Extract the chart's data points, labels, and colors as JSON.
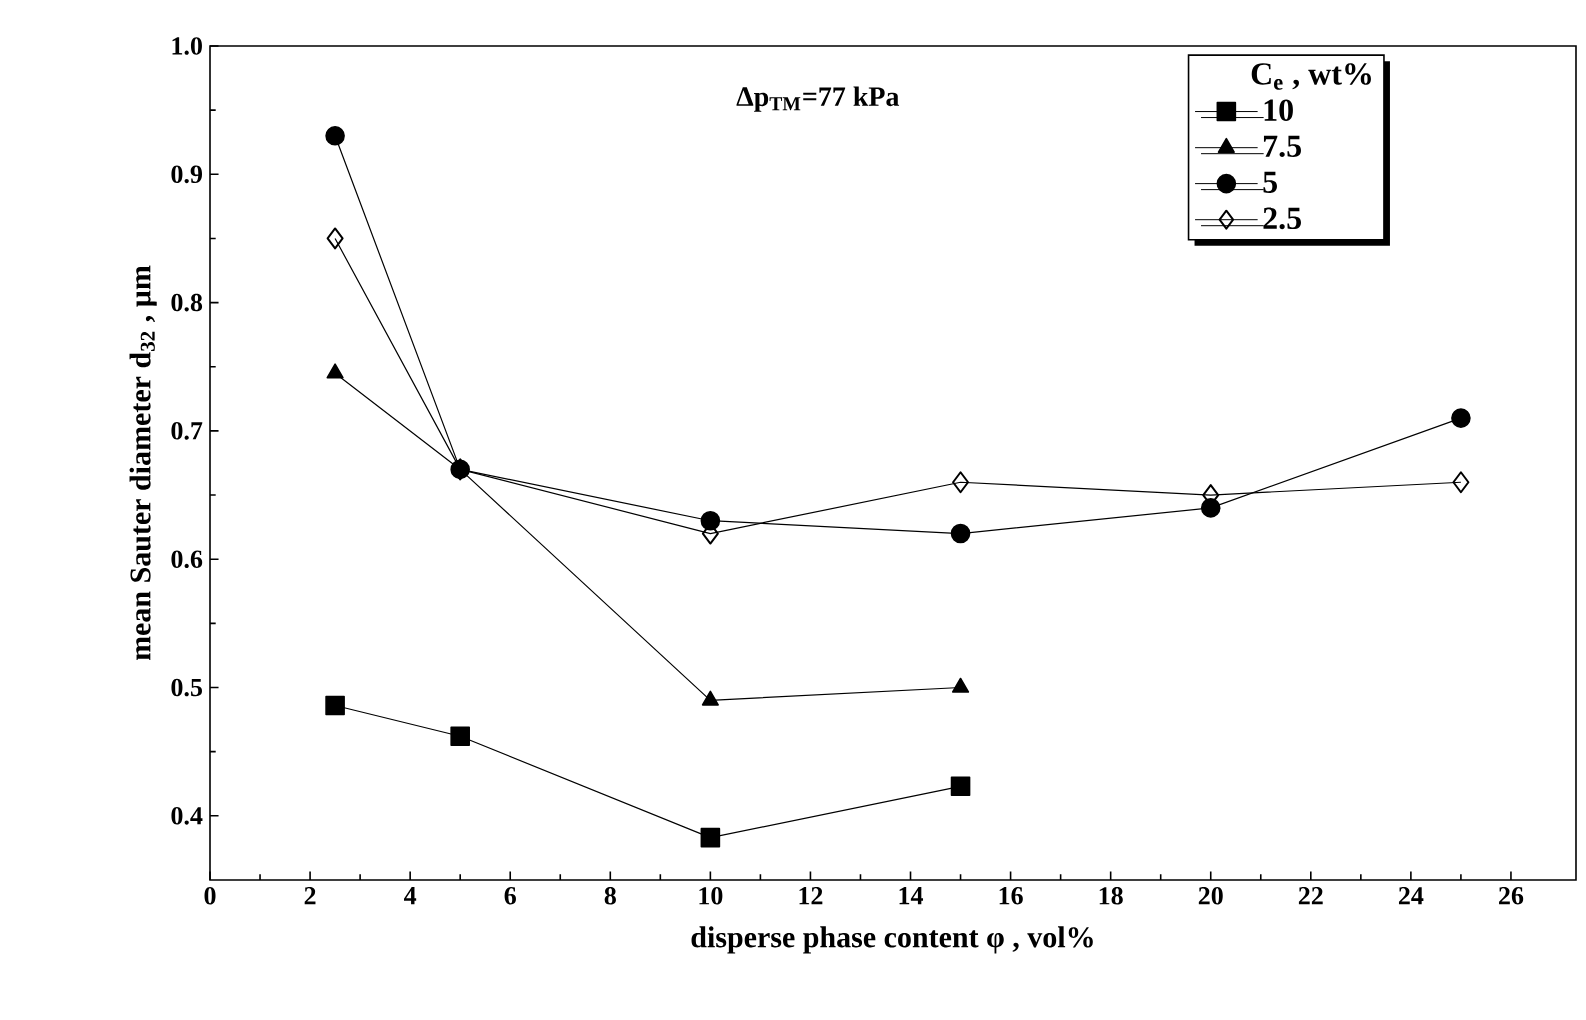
{
  "chart_data": {
    "type": "line",
    "xlabel": "disperse phase content φ , vol%",
    "ylabel": "mean Sauter diameter d$_{32}$ , µm",
    "legend_title": "C$_{e}$ , wt%",
    "annotations": [
      "Δp$_{TM}$=77 kPa"
    ],
    "xlim": [
      0,
      27.3
    ],
    "xticks": [
      0,
      2,
      4,
      6,
      8,
      10,
      12,
      14,
      16,
      18,
      20,
      22,
      24,
      26
    ],
    "ylim": [
      0.35,
      1.0
    ],
    "yticks": [
      {
        "value": 0.4,
        "label": "0.4"
      },
      {
        "value": 0.5,
        "label": "0.5"
      },
      {
        "value": 0.6,
        "label": "0.6"
      },
      {
        "value": 0.7,
        "label": "0.7"
      },
      {
        "value": 0.8,
        "label": "0.8"
      },
      {
        "value": 0.9,
        "label": "0.9"
      },
      {
        "value": 1.0,
        "label": "1.0"
      }
    ],
    "grid": false,
    "legend": "top right",
    "line_style": "solid",
    "series": [
      {
        "name": "10",
        "color": "#000000",
        "marker": "square",
        "x": [
          2.5,
          5,
          10,
          15
        ],
        "values": [
          0.486,
          0.462,
          0.383,
          0.423
        ]
      },
      {
        "name": "7.5",
        "color": "#000000",
        "marker": "triangle",
        "x": [
          2.5,
          5,
          10,
          15
        ],
        "values": [
          0.745,
          0.67,
          0.49,
          0.5
        ]
      },
      {
        "name": "5",
        "color": "#000000",
        "marker": "circle",
        "x": [
          2.5,
          5,
          10,
          15,
          20,
          25
        ],
        "values": [
          0.93,
          0.67,
          0.63,
          0.62,
          0.64,
          0.71
        ]
      },
      {
        "name": "2.5",
        "color": "#000000",
        "marker": "diamond",
        "x": [
          2.5,
          5,
          10,
          15,
          20,
          25
        ],
        "values": [
          0.85,
          0.67,
          0.62,
          0.66,
          0.65,
          0.66
        ]
      }
    ]
  }
}
